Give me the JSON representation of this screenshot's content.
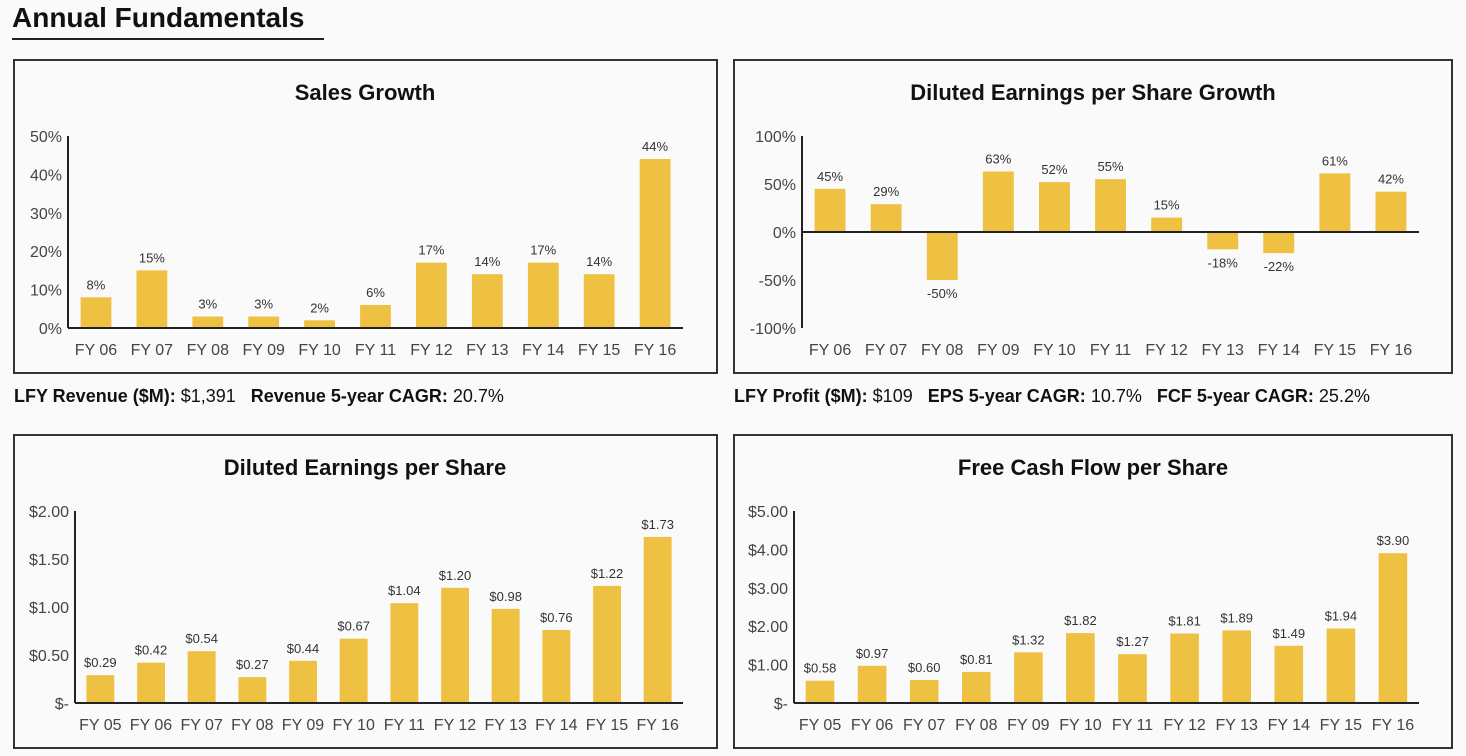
{
  "page": {
    "title": "Annual Fundamentals"
  },
  "colors": {
    "bar": "#efc142",
    "axis": "#222222",
    "text": "#444444"
  },
  "stats_left": {
    "revenue_label": "LFY Revenue ($M):",
    "revenue_value": "$1,391",
    "cagr_label": "Revenue 5-year CAGR:",
    "cagr_value": "20.7%"
  },
  "stats_right": {
    "profit_label": "LFY Profit ($M):",
    "profit_value": "$109",
    "eps_cagr_label": "EPS 5-year CAGR:",
    "eps_cagr_value": "10.7%",
    "fcf_cagr_label": "FCF 5-year CAGR:",
    "fcf_cagr_value": "25.2%"
  },
  "chart_data": [
    {
      "id": "sales-growth",
      "type": "bar",
      "title": "Sales Growth",
      "categories": [
        "FY 06",
        "FY 07",
        "FY 08",
        "FY 09",
        "FY 10",
        "FY 11",
        "FY 12",
        "FY 13",
        "FY 14",
        "FY 15",
        "FY 16"
      ],
      "values": [
        8,
        15,
        3,
        3,
        2,
        6,
        17,
        14,
        17,
        14,
        44
      ],
      "data_labels": [
        "8%",
        "15%",
        "3%",
        "3%",
        "2%",
        "6%",
        "17%",
        "14%",
        "17%",
        "14%",
        "44%"
      ],
      "ylim": [
        0,
        50
      ],
      "yticks": [
        0,
        10,
        20,
        30,
        40,
        50
      ],
      "ytick_labels": [
        "0%",
        "10%",
        "20%",
        "30%",
        "40%",
        "50%"
      ],
      "grid": false
    },
    {
      "id": "eps-growth",
      "type": "bar",
      "title": "Diluted Earnings per Share Growth",
      "categories": [
        "FY 06",
        "FY 07",
        "FY 08",
        "FY 09",
        "FY 10",
        "FY 11",
        "FY 12",
        "FY 13",
        "FY 14",
        "FY 15",
        "FY 16"
      ],
      "values": [
        45,
        29,
        -50,
        63,
        52,
        55,
        15,
        -18,
        -22,
        61,
        42
      ],
      "data_labels": [
        "45%",
        "29%",
        "-50%",
        "63%",
        "52%",
        "55%",
        "15%",
        "-18%",
        "-22%",
        "61%",
        "42%"
      ],
      "ylim": [
        -100,
        100
      ],
      "yticks": [
        -100,
        -50,
        0,
        50,
        100
      ],
      "ytick_labels": [
        "-100%",
        "-50%",
        "0%",
        "50%",
        "100%"
      ],
      "grid": false
    },
    {
      "id": "diluted-eps",
      "type": "bar",
      "title": "Diluted Earnings per Share",
      "categories": [
        "FY 05",
        "FY 06",
        "FY 07",
        "FY 08",
        "FY 09",
        "FY 10",
        "FY 11",
        "FY 12",
        "FY 13",
        "FY 14",
        "FY 15",
        "FY 16"
      ],
      "values": [
        0.29,
        0.42,
        0.54,
        0.27,
        0.44,
        0.67,
        1.04,
        1.2,
        0.98,
        0.76,
        1.22,
        1.73
      ],
      "data_labels": [
        "$0.29",
        "$0.42",
        "$0.54",
        "$0.27",
        "$0.44",
        "$0.67",
        "$1.04",
        "$1.20",
        "$0.98",
        "$0.76",
        "$1.22",
        "$1.73"
      ],
      "ylim": [
        0,
        2
      ],
      "yticks": [
        0,
        0.5,
        1,
        1.5,
        2
      ],
      "ytick_labels": [
        "$-",
        "$0.50",
        "$1.00",
        "$1.50",
        "$2.00"
      ],
      "grid": false
    },
    {
      "id": "fcf-per-share",
      "type": "bar",
      "title": "Free Cash Flow per Share",
      "categories": [
        "FY 05",
        "FY 06",
        "FY 07",
        "FY 08",
        "FY 09",
        "FY 10",
        "FY 11",
        "FY 12",
        "FY 13",
        "FY 14",
        "FY 15",
        "FY 16"
      ],
      "values": [
        0.58,
        0.97,
        0.6,
        0.81,
        1.32,
        1.82,
        1.27,
        1.81,
        1.89,
        1.49,
        1.94,
        3.9
      ],
      "data_labels": [
        "$0.58",
        "$0.97",
        "$0.60",
        "$0.81",
        "$1.32",
        "$1.82",
        "$1.27",
        "$1.81",
        "$1.89",
        "$1.49",
        "$1.94",
        "$3.90"
      ],
      "ylim": [
        0,
        5
      ],
      "yticks": [
        0,
        1,
        2,
        3,
        4,
        5
      ],
      "ytick_labels": [
        "$-",
        "$1.00",
        "$2.00",
        "$3.00",
        "$4.00",
        "$5.00"
      ],
      "grid": false
    }
  ]
}
